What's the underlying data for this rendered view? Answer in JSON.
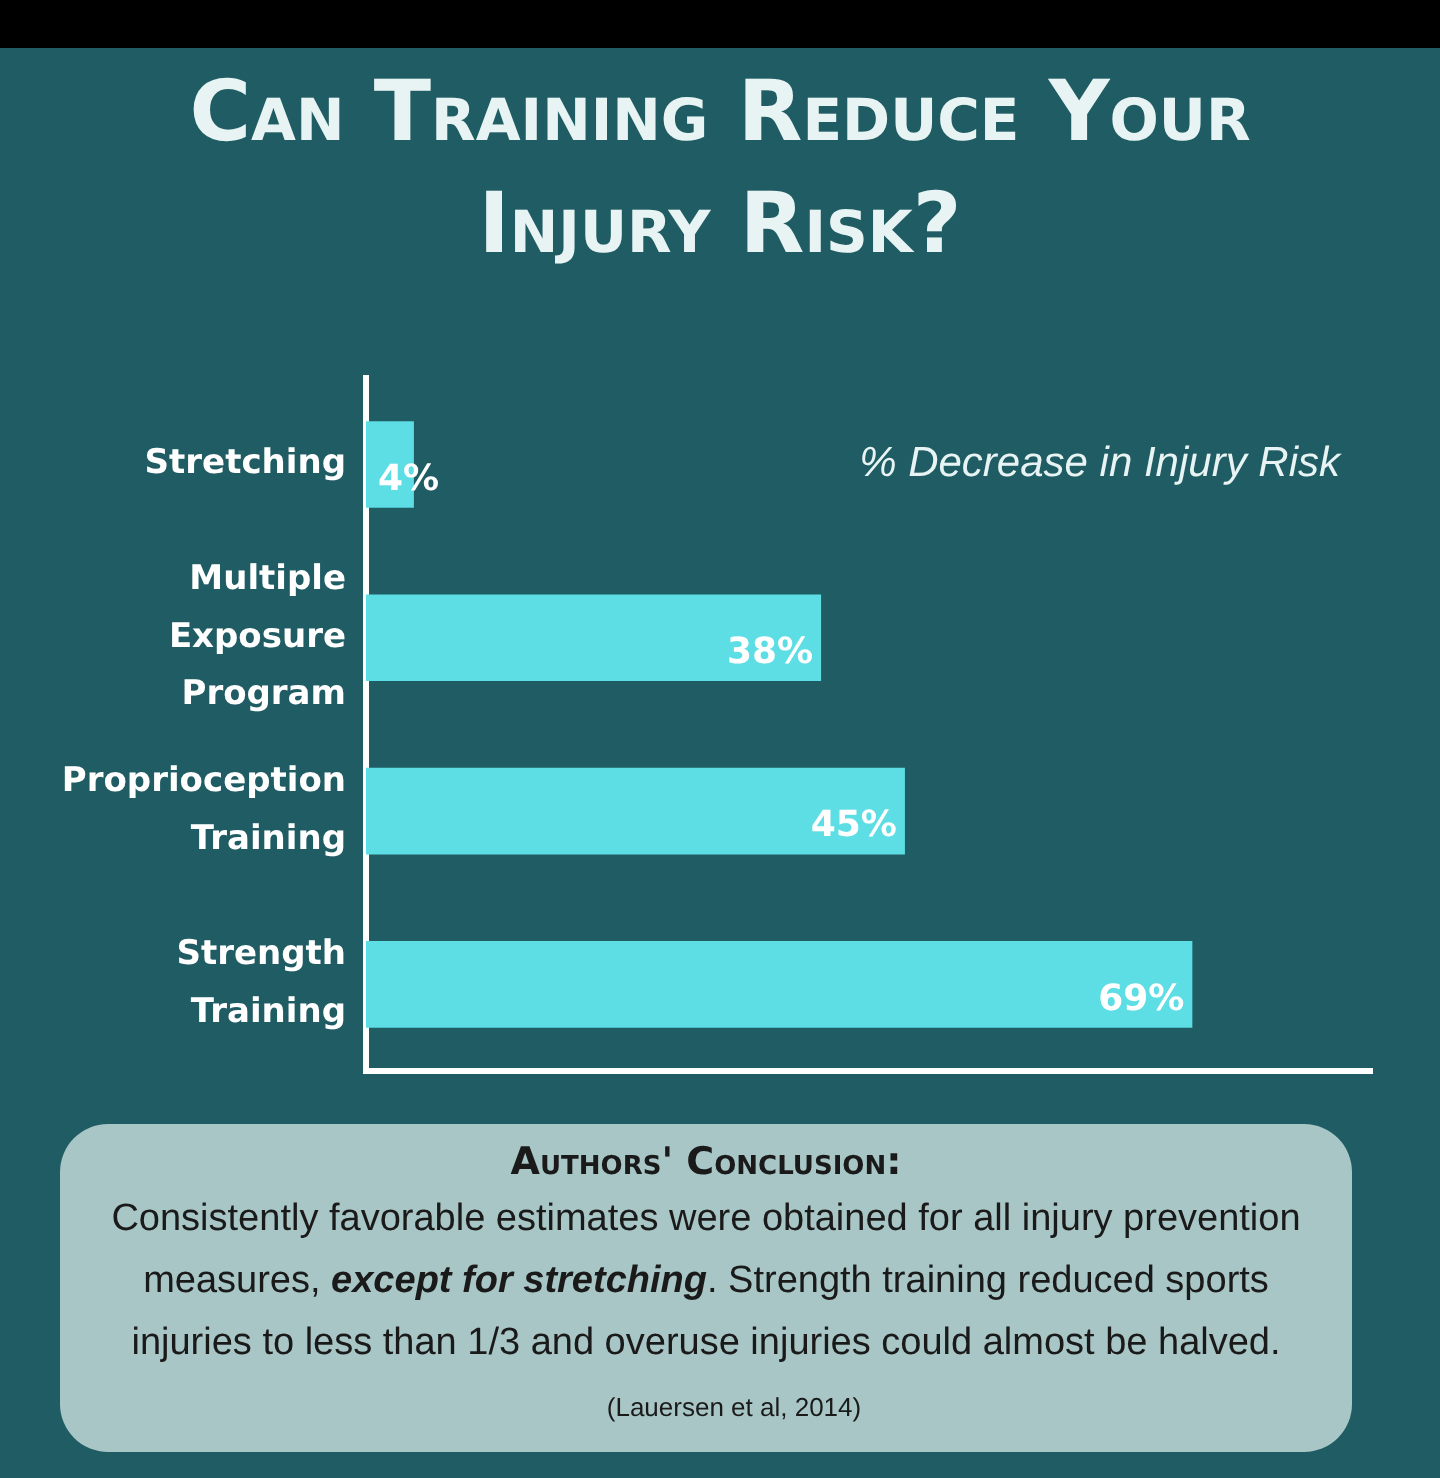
{
  "chart_data": {
    "type": "bar",
    "orientation": "horizontal",
    "title": "Can Training Reduce Your Injury Risk?",
    "xlabel": "% Decrease in Injury Risk",
    "categories": [
      "Stretching",
      "Multiple Exposure Program",
      "Proprioception Training",
      "Strength Training"
    ],
    "values": [
      4,
      38,
      45,
      69
    ],
    "value_labels": [
      "4%",
      "38%",
      "45%",
      "69%"
    ],
    "color": "#5ddde4",
    "xlim": [
      0,
      84
    ],
    "tick_labels": "y",
    "annotations": [
      "Authors' Conclusion:",
      "Consistently favorable estimates were obtained for all injury prevention measures, ",
      "except for stretching",
      ". Strength training reduced sports injuries to less than 1/3 and overuse injuries could almost be halved.",
      "(Lauersen et al, 2014)"
    ]
  }
}
